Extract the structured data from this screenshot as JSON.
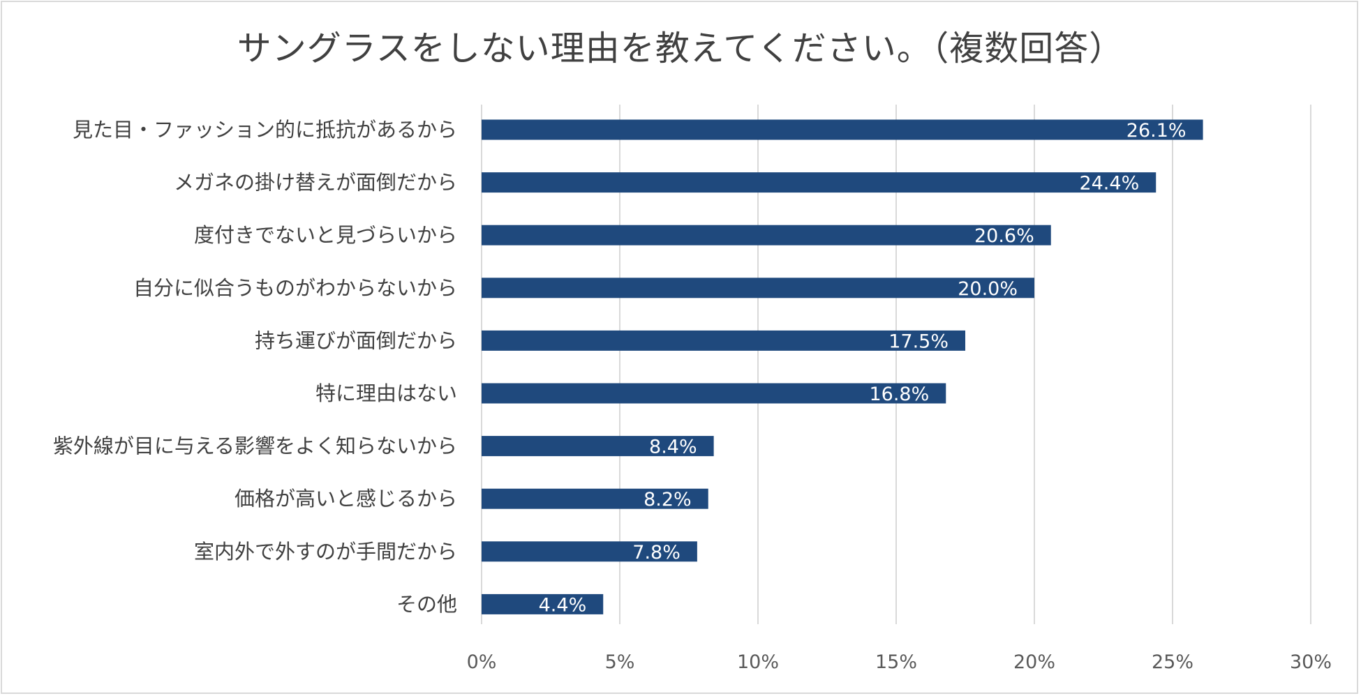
{
  "chart_data": {
    "type": "bar",
    "orientation": "horizontal",
    "title": "サングラスをしない理由を教えてください。（複数回答）",
    "categories": [
      "見た目・ファッション的に抵抗があるから",
      "メガネの掛け替えが面倒だから",
      "度付きでないと見づらいから",
      "自分に似合うものがわからないから",
      "持ち運びが面倒だから",
      "特に理由はない",
      "紫外線が目に与える影響をよく知らないから",
      "価格が高いと感じるから",
      "室内外で外すのが手間だから",
      "その他"
    ],
    "values": [
      26.1,
      24.4,
      20.6,
      20.0,
      17.5,
      16.8,
      8.4,
      8.2,
      7.8,
      4.4
    ],
    "data_labels": [
      "26.1%",
      "24.4%",
      "20.6%",
      "20.0%",
      "17.5%",
      "16.8%",
      "8.4%",
      "8.2%",
      "7.8%",
      "4.4%"
    ],
    "xlim": [
      0,
      30
    ],
    "x_ticks": [
      0,
      5,
      10,
      15,
      20,
      25,
      30
    ],
    "x_tick_labels": [
      "0%",
      "5%",
      "10%",
      "15%",
      "20%",
      "25%",
      "30%"
    ],
    "xlabel": "",
    "ylabel": "",
    "grid": true,
    "legend": false,
    "bar_color": "#1f497d",
    "grid_color": "#d9d9d9"
  }
}
